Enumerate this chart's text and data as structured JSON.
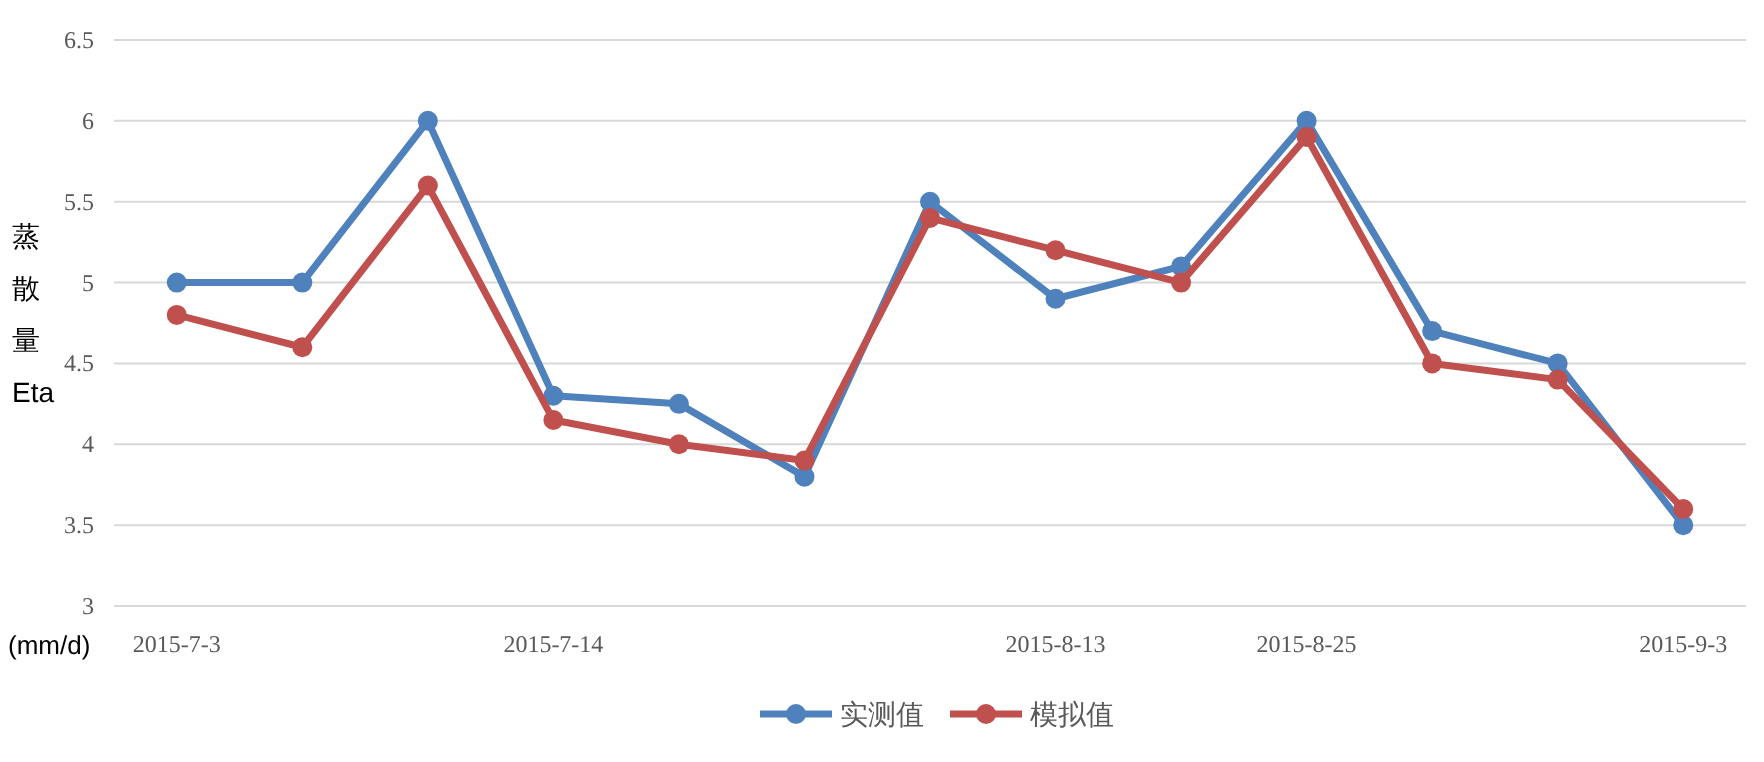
{
  "chart_data": {
    "type": "line",
    "ylabel": "蒸散量Eta",
    "annotations": [
      "(mm/d)"
    ],
    "categories": [
      "2015-7-3",
      null,
      null,
      "2015-7-14",
      null,
      null,
      null,
      "2015-8-13",
      null,
      "2015-8-25",
      null,
      null,
      "2015-9-3"
    ],
    "series": [
      {
        "name": "实测值",
        "color": "#4f81bd",
        "values": [
          5,
          5,
          6,
          4.3,
          4.25,
          3.8,
          5.5,
          4.9,
          5.1,
          6,
          4.7,
          4.5,
          3.5
        ]
      },
      {
        "name": "模拟值",
        "color": "#c0504d",
        "values": [
          4.8,
          4.6,
          5.6,
          4.15,
          4.0,
          3.9,
          5.4,
          5.2,
          5.0,
          5.9,
          4.5,
          4.4,
          3.6
        ]
      }
    ],
    "ylim": [
      3,
      6.5
    ],
    "yticks": [
      3,
      3.5,
      4,
      4.5,
      5,
      5.5,
      6,
      6.5
    ],
    "grid": "y",
    "legend": "bottom",
    "marker": "circle",
    "line_style": "solid"
  }
}
